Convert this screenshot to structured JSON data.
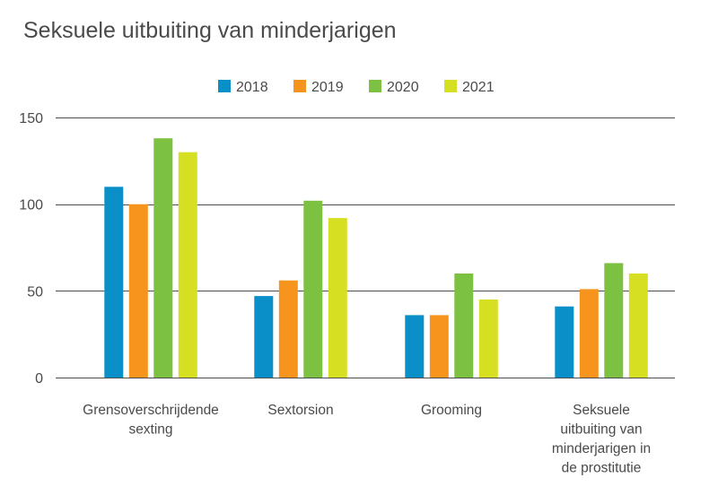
{
  "chart_data": {
    "type": "bar",
    "title": "Seksuele uitbuiting van minderjarigen",
    "xlabel": "",
    "ylabel": "",
    "categories": [
      [
        "Grensoverschrijdende",
        "sexting"
      ],
      [
        "Sextorsion"
      ],
      [
        "Grooming"
      ],
      [
        "Seksuele",
        "uitbuiting van",
        "minderjarigen in",
        "de prostitutie"
      ]
    ],
    "series": [
      {
        "name": "2018",
        "color": "#0a8fc8",
        "values": [
          110,
          47,
          36,
          41
        ]
      },
      {
        "name": "2019",
        "color": "#f7941d",
        "values": [
          100,
          56,
          36,
          51
        ]
      },
      {
        "name": "2020",
        "color": "#7cc142",
        "values": [
          138,
          102,
          60,
          66
        ]
      },
      {
        "name": "2021",
        "color": "#d7df23",
        "values": [
          130,
          92,
          45,
          60
        ]
      }
    ],
    "ylim": [
      0,
      150
    ],
    "yticks": [
      0,
      50,
      100,
      150
    ],
    "ytick_labels": [
      "0",
      "50",
      "100",
      "150"
    ],
    "grid": true,
    "legend_position": "top-center"
  }
}
